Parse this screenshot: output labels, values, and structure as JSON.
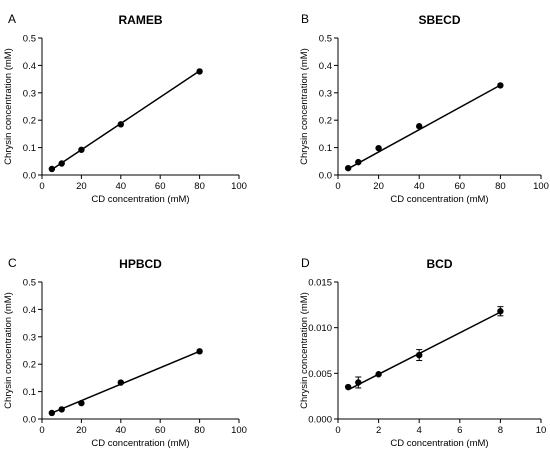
{
  "chart_data": [
    {
      "type": "scatter",
      "panel": "A",
      "title": "RAMEB",
      "xlabel": "CD concentration (mM)",
      "ylabel": "Chrysin concentration (mM)",
      "xlim": [
        0,
        100
      ],
      "ylim": [
        0,
        0.5
      ],
      "xticks": [
        "0",
        "20",
        "40",
        "60",
        "80",
        "100"
      ],
      "yticks": [
        "0.0",
        "0.1",
        "0.2",
        "0.3",
        "0.4",
        "0.5"
      ],
      "x": [
        5,
        10,
        20,
        40,
        80
      ],
      "y": [
        0.022,
        0.042,
        0.092,
        0.185,
        0.378
      ],
      "fit_line": {
        "x": [
          5,
          80
        ],
        "y": [
          0.02,
          0.38
        ]
      }
    },
    {
      "type": "scatter",
      "panel": "B",
      "title": "SBECD",
      "xlabel": "CD concentration (mM)",
      "ylabel": "Chrysin concentration (mM)",
      "xlim": [
        0,
        100
      ],
      "ylim": [
        0,
        0.5
      ],
      "xticks": [
        "0",
        "20",
        "40",
        "60",
        "80",
        "100"
      ],
      "yticks": [
        "0.0",
        "0.1",
        "0.2",
        "0.3",
        "0.4",
        "0.5"
      ],
      "x": [
        5,
        10,
        20,
        40,
        80
      ],
      "y": [
        0.025,
        0.047,
        0.098,
        0.178,
        0.327
      ],
      "fit_line": {
        "x": [
          5,
          80
        ],
        "y": [
          0.023,
          0.328
        ]
      }
    },
    {
      "type": "scatter",
      "panel": "C",
      "title": "HPBCD",
      "xlabel": "CD concentration (mM)",
      "ylabel": "Chrysin concentration (mM)",
      "xlim": [
        0,
        100
      ],
      "ylim": [
        0,
        0.5
      ],
      "xticks": [
        "0",
        "20",
        "40",
        "60",
        "80",
        "100"
      ],
      "yticks": [
        "0.0",
        "0.1",
        "0.2",
        "0.3",
        "0.4",
        "0.5"
      ],
      "x": [
        5,
        10,
        20,
        40,
        80
      ],
      "y": [
        0.022,
        0.035,
        0.058,
        0.133,
        0.247
      ],
      "fit_line": {
        "x": [
          5,
          80
        ],
        "y": [
          0.022,
          0.247
        ]
      }
    },
    {
      "type": "scatter",
      "panel": "D",
      "title": "BCD",
      "xlabel": "CD concentration (mM)",
      "ylabel": "Chrysin concentration (mM)",
      "xlim": [
        0,
        10
      ],
      "ylim": [
        0,
        0.015
      ],
      "xticks": [
        "0",
        "2",
        "4",
        "6",
        "8",
        "10"
      ],
      "yticks": [
        "0.000",
        "0.005",
        "0.010",
        "0.015"
      ],
      "x": [
        0.5,
        1,
        2,
        4,
        8
      ],
      "y": [
        0.0035,
        0.004,
        0.0049,
        0.007,
        0.0118
      ],
      "y_error": [
        0,
        0.0006,
        0,
        0.0006,
        0.0005
      ],
      "fit_line": {
        "x": [
          0.5,
          8
        ],
        "y": [
          0.0032,
          0.0117
        ]
      }
    }
  ]
}
